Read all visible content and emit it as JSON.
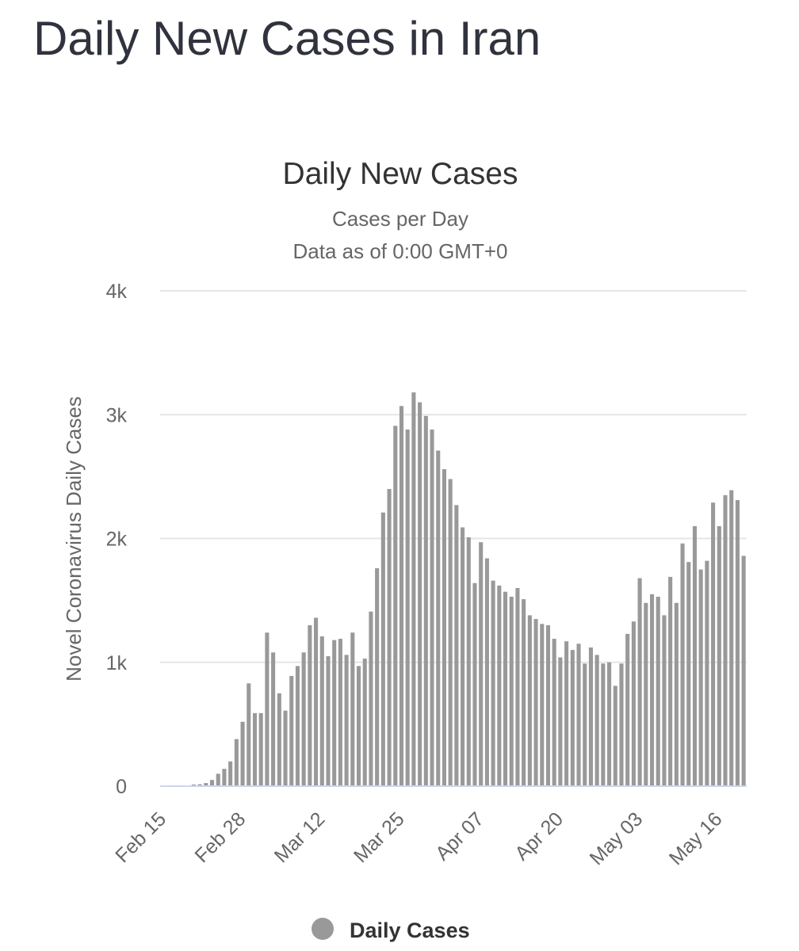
{
  "page": {
    "title": "Daily New Cases in Iran"
  },
  "chart_data": {
    "type": "bar",
    "title": "Daily New Cases",
    "subtitle": [
      "Cases per Day",
      "Data as of 0:00 GMT+0"
    ],
    "ylabel": "Novel Coronavirus Daily Cases",
    "xlabel": "",
    "ylim": [
      0,
      4000
    ],
    "yticks": [
      {
        "value": 0,
        "label": "0"
      },
      {
        "value": 1000,
        "label": "1k"
      },
      {
        "value": 2000,
        "label": "2k"
      },
      {
        "value": 3000,
        "label": "3k"
      },
      {
        "value": 4000,
        "label": "4k"
      }
    ],
    "xticks": [
      {
        "index": 0,
        "label": "Feb 15"
      },
      {
        "index": 13,
        "label": "Feb 28"
      },
      {
        "index": 26,
        "label": "Mar 12"
      },
      {
        "index": 39,
        "label": "Mar 25"
      },
      {
        "index": 52,
        "label": "Apr 07"
      },
      {
        "index": 65,
        "label": "Apr 20"
      },
      {
        "index": 78,
        "label": "May 03"
      },
      {
        "index": 91,
        "label": "May 16"
      }
    ],
    "grid": true,
    "legend_position": "bottom-center",
    "bar_color": "#999999",
    "series": [
      {
        "name": "Daily Cases",
        "values": [
          0,
          0,
          0,
          0,
          0,
          13,
          15,
          25,
          50,
          100,
          140,
          200,
          380,
          520,
          830,
          590,
          590,
          1240,
          1080,
          750,
          610,
          890,
          970,
          1080,
          1300,
          1360,
          1210,
          1050,
          1180,
          1190,
          1060,
          1240,
          970,
          1030,
          1410,
          1760,
          2210,
          2400,
          2910,
          3070,
          2880,
          3180,
          3100,
          2990,
          2880,
          2710,
          2560,
          2480,
          2270,
          2090,
          2010,
          1640,
          1970,
          1840,
          1660,
          1620,
          1570,
          1530,
          1600,
          1510,
          1380,
          1350,
          1310,
          1300,
          1190,
          1040,
          1170,
          1100,
          1150,
          990,
          1120,
          1060,
          990,
          1000,
          810,
          990,
          1230,
          1330,
          1680,
          1480,
          1550,
          1530,
          1380,
          1690,
          1480,
          1960,
          1810,
          2100,
          1750,
          1820,
          2290,
          2100,
          2350,
          2390,
          2310,
          1860
        ]
      }
    ]
  },
  "colors": {
    "bar": "#999999",
    "grid": "#e6e6e6",
    "baseline": "#ccd6eb",
    "title": "#333333",
    "text": "#666666"
  }
}
